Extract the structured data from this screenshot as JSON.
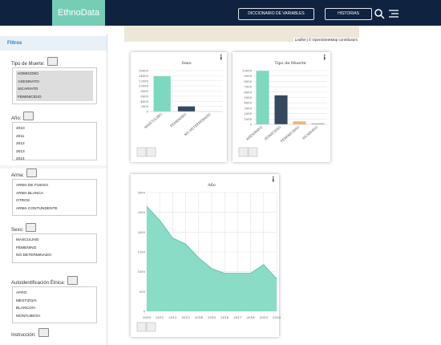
{
  "header": {
    "brand": "EthnoData",
    "buttons": [
      "DICCIONARIO DE VARIABLES",
      "HISTORIAS"
    ]
  },
  "map": {
    "attribution": "Leaflet | © OpenStreetMap contributors"
  },
  "sidebar": {
    "title": "Filtros",
    "filters": [
      {
        "label": "Tipo de Muerte:",
        "options": [
          "HOMICIDIO",
          "ASESINATO",
          "SICARIATO",
          "FEMINICIDIO"
        ],
        "selected": true
      },
      {
        "label": "Año:",
        "options": [
          "2010",
          "2011",
          "2012",
          "2013",
          "2014"
        ]
      },
      {
        "label": "Arma:",
        "options": [
          "ARMA DE FUEGO",
          "ARMA BLANCA",
          "OTROS",
          "ARMA CONTUNDENTE"
        ]
      },
      {
        "label": "Sexo:",
        "options": [
          "MASCULINO",
          "FEMENINO",
          "NO DETERMINADO"
        ]
      },
      {
        "label": "Autoidentificación Étnica:",
        "options": [
          "AFRO",
          "MESTIZO/A",
          "BLANCO/A",
          "MONTUBIO/A"
        ]
      },
      {
        "label": "Instrucción:",
        "options": []
      }
    ]
  },
  "chart_data": [
    {
      "type": "bar",
      "title": "Sexo",
      "categories": [
        "MASCULINO",
        "FEMENINO",
        "NO DETERMINADO"
      ],
      "values": [
        13800,
        2000,
        50
      ],
      "colors": [
        "#7dd8c0",
        "#34495e",
        "#f0b27a"
      ],
      "ylim": [
        0,
        16000
      ],
      "yticks": [
        0,
        2000,
        4000,
        6000,
        8000,
        10000,
        12000,
        14000,
        16000
      ],
      "grid": true
    },
    {
      "type": "bar",
      "title": "Tipo de Muerte",
      "categories": [
        "ASESINATO",
        "HOMICIDIO",
        "FEMINICIDIO",
        "SICARIATO"
      ],
      "values": [
        9950,
        5400,
        550,
        200
      ],
      "colors": [
        "#7dd8c0",
        "#34495e",
        "#f0b27a",
        "#aab0b5"
      ],
      "ylim": [
        0,
        10000
      ],
      "yticks": [
        0,
        1000,
        2000,
        3000,
        4000,
        5000,
        6000,
        7000,
        8000,
        9000,
        10000
      ],
      "grid": true
    },
    {
      "type": "area",
      "title": "Año",
      "x": [
        2010,
        2011,
        2012,
        2013,
        2014,
        2015,
        2016,
        2017,
        2018,
        2019,
        2020
      ],
      "values": [
        2650,
        2300,
        1850,
        1700,
        1350,
        1080,
        960,
        960,
        960,
        1180,
        820
      ],
      "color": "#7dd8c0",
      "xlim": [
        2010,
        2020
      ],
      "xticks": [
        2010,
        2011,
        2012,
        2013,
        2014,
        2015,
        2016,
        2017,
        2018,
        2019,
        2020
      ],
      "ylim": [
        0,
        3000
      ],
      "yticks": [
        0,
        500,
        1000,
        1500,
        2000,
        2500,
        3000
      ],
      "grid": true
    }
  ]
}
